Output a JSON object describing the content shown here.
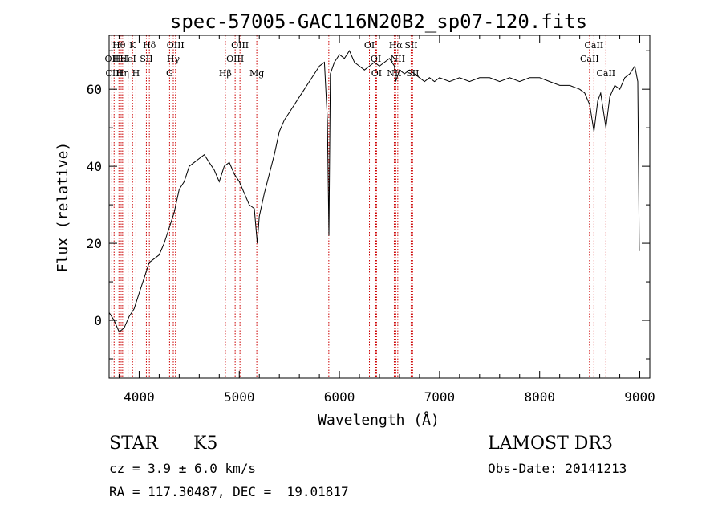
{
  "chart_data": {
    "type": "line",
    "title": "spec-57005-GAC116N20B2_sp07-120.fits",
    "xlabel": "Wavelength (Å)",
    "ylabel": "Flux (relative)",
    "xlim": [
      3700,
      9100
    ],
    "ylim": [
      -15,
      74
    ],
    "x_ticks": [
      4000,
      5000,
      6000,
      7000,
      8000,
      9000
    ],
    "x_tick_labels": [
      "4000",
      "5000",
      "6000",
      "7000",
      "8000",
      "9000"
    ],
    "y_ticks": [
      0,
      20,
      40,
      60
    ],
    "y_tick_labels": [
      "0",
      "20",
      "40",
      "60"
    ],
    "grid": false,
    "line_color": "#000000",
    "marker_color": "#cc0000",
    "spectrum": {
      "x": [
        3700,
        3750,
        3800,
        3850,
        3900,
        3950,
        4000,
        4050,
        4100,
        4150,
        4200,
        4250,
        4300,
        4350,
        4400,
        4450,
        4500,
        4550,
        4600,
        4650,
        4700,
        4750,
        4800,
        4850,
        4900,
        4950,
        5000,
        5050,
        5100,
        5150,
        5180,
        5200,
        5250,
        5300,
        5350,
        5400,
        5450,
        5500,
        5550,
        5600,
        5650,
        5700,
        5750,
        5800,
        5850,
        5880,
        5895,
        5910,
        5950,
        6000,
        6050,
        6100,
        6150,
        6200,
        6250,
        6300,
        6350,
        6400,
        6450,
        6500,
        6550,
        6563,
        6600,
        6650,
        6700,
        6750,
        6800,
        6850,
        6900,
        6950,
        7000,
        7100,
        7200,
        7300,
        7400,
        7500,
        7600,
        7700,
        7800,
        7900,
        8000,
        8100,
        8200,
        8300,
        8400,
        8450,
        8500,
        8542,
        8580,
        8610,
        8662,
        8700,
        8750,
        8800,
        8850,
        8900,
        8950,
        8980,
        8995
      ],
      "y": [
        2,
        0,
        -3,
        -2,
        1,
        3,
        7,
        11,
        15,
        16,
        17,
        20,
        24,
        28,
        34,
        36,
        40,
        41,
        42,
        43,
        41,
        39,
        36,
        40,
        41,
        38,
        36,
        33,
        30,
        29,
        20,
        27,
        33,
        38,
        43,
        49,
        52,
        54,
        56,
        58,
        60,
        62,
        64,
        66,
        67,
        52,
        22,
        64,
        67,
        69,
        68,
        70,
        67,
        66,
        65,
        66,
        67,
        66,
        67,
        68,
        66,
        62,
        65,
        64,
        65,
        64,
        63,
        62,
        63,
        62,
        63,
        62,
        63,
        62,
        63,
        63,
        62,
        63,
        62,
        63,
        63,
        62,
        61,
        61,
        60,
        59,
        56,
        49,
        57,
        59,
        50,
        58,
        61,
        60,
        63,
        64,
        66,
        62,
        18
      ]
    },
    "lines": [
      {
        "wl": 3727,
        "labels": [
          "OII"
        ],
        "rows": [
          1
        ]
      },
      {
        "wl": 3750,
        "labels": [
          "CIII"
        ],
        "rows": [
          2
        ]
      },
      {
        "wl": 3798,
        "labels": [
          "Hθ"
        ],
        "rows": [
          0
        ]
      },
      {
        "wl": 3820,
        "labels": [
          "HeI"
        ],
        "rows": [
          1
        ]
      },
      {
        "wl": 3835,
        "labels": [
          "Hη"
        ],
        "rows": [
          2
        ]
      },
      {
        "wl": 3889,
        "labels": [
          "HeI"
        ],
        "rows": [
          1
        ]
      },
      {
        "wl": 3934,
        "labels": [
          "K"
        ],
        "rows": [
          0
        ]
      },
      {
        "wl": 3968,
        "labels": [
          "H"
        ],
        "rows": [
          2
        ]
      },
      {
        "wl": 4072,
        "labels": [
          "SII"
        ],
        "rows": [
          1
        ]
      },
      {
        "wl": 4102,
        "labels": [
          "Hδ"
        ],
        "rows": [
          0
        ]
      },
      {
        "wl": 4304,
        "labels": [
          "G"
        ],
        "rows": [
          2
        ]
      },
      {
        "wl": 4341,
        "labels": [
          "Hγ"
        ],
        "rows": [
          1
        ]
      },
      {
        "wl": 4363,
        "labels": [
          "OIII"
        ],
        "rows": [
          0
        ]
      },
      {
        "wl": 4861,
        "labels": [
          "Hβ"
        ],
        "rows": [
          2
        ]
      },
      {
        "wl": 4959,
        "labels": [
          "OIII"
        ],
        "rows": [
          1
        ]
      },
      {
        "wl": 5007,
        "labels": [
          "OIII"
        ],
        "rows": [
          0
        ]
      },
      {
        "wl": 5175,
        "labels": [
          "Mg"
        ],
        "rows": [
          2
        ]
      },
      {
        "wl": 5894,
        "labels": [],
        "rows": []
      },
      {
        "wl": 6300,
        "labels": [
          "OI"
        ],
        "rows": [
          0
        ]
      },
      {
        "wl": 6364,
        "labels": [
          "OI"
        ],
        "rows": [
          1
        ]
      },
      {
        "wl": 6371,
        "labels": [
          "OI"
        ],
        "rows": [
          2
        ]
      },
      {
        "wl": 6548,
        "labels": [
          "NII"
        ],
        "rows": [
          2
        ]
      },
      {
        "wl": 6563,
        "labels": [
          "Hα"
        ],
        "rows": [
          0
        ]
      },
      {
        "wl": 6583,
        "labels": [
          "NII"
        ],
        "rows": [
          1
        ]
      },
      {
        "wl": 6716,
        "labels": [
          "SII"
        ],
        "rows": [
          0
        ]
      },
      {
        "wl": 6731,
        "labels": [
          "SII"
        ],
        "rows": [
          2
        ]
      },
      {
        "wl": 8498,
        "labels": [
          "CaII"
        ],
        "rows": [
          1
        ]
      },
      {
        "wl": 8542,
        "labels": [
          "CaII"
        ],
        "rows": [
          0
        ]
      },
      {
        "wl": 8662,
        "labels": [
          "CaII"
        ],
        "rows": [
          2
        ]
      }
    ]
  },
  "info": {
    "object_type": "STAR",
    "subclass": "K5",
    "survey": "LAMOST DR3",
    "cz": "cz = 3.9 ± 6.0 km/s",
    "obs_date": "Obs-Date: 20141213",
    "coords": "RA = 117.30487, DEC =  19.01817"
  }
}
